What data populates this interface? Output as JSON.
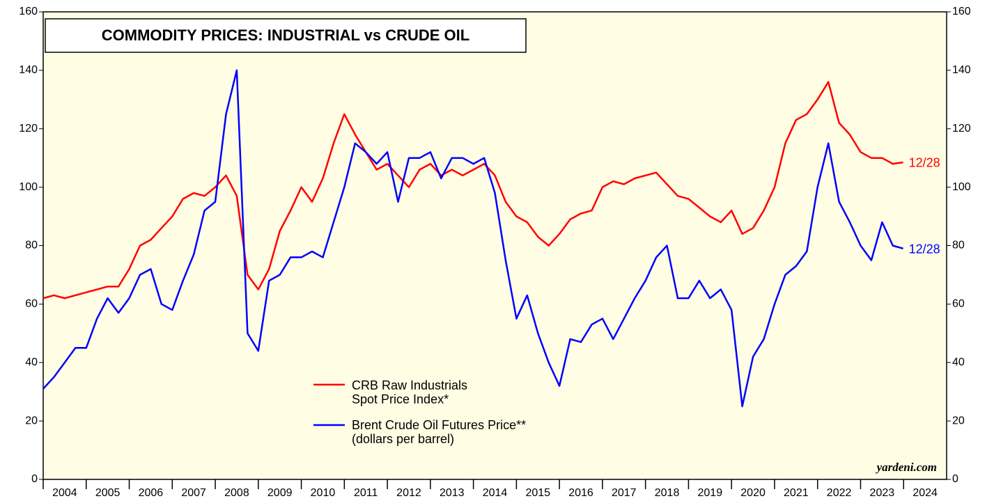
{
  "chart_data": {
    "type": "line",
    "title": "COMMODITY PRICES: INDUSTRIAL vs CRUDE OIL",
    "source": "yardeni.com",
    "x": [
      2004.0,
      2004.25,
      2004.5,
      2004.75,
      2005.0,
      2005.25,
      2005.5,
      2005.75,
      2006.0,
      2006.25,
      2006.5,
      2006.75,
      2007.0,
      2007.25,
      2007.5,
      2007.75,
      2008.0,
      2008.25,
      2008.5,
      2008.75,
      2009.0,
      2009.25,
      2009.5,
      2009.75,
      2010.0,
      2010.25,
      2010.5,
      2010.75,
      2011.0,
      2011.25,
      2011.5,
      2011.75,
      2012.0,
      2012.25,
      2012.5,
      2012.75,
      2013.0,
      2013.25,
      2013.5,
      2013.75,
      2014.0,
      2014.25,
      2014.5,
      2014.75,
      2015.0,
      2015.25,
      2015.5,
      2015.75,
      2016.0,
      2016.25,
      2016.5,
      2016.75,
      2017.0,
      2017.25,
      2017.5,
      2017.75,
      2018.0,
      2018.25,
      2018.5,
      2018.75,
      2019.0,
      2019.25,
      2019.5,
      2019.75,
      2020.0,
      2020.25,
      2020.5,
      2020.75,
      2021.0,
      2021.25,
      2021.5,
      2021.75,
      2022.0,
      2022.25,
      2022.5,
      2022.75,
      2023.0,
      2023.25,
      2023.5,
      2023.75,
      2023.99
    ],
    "series": [
      {
        "name": "CRB Raw Industrials\nSpot Price Index*",
        "color": "#ff0000",
        "values": [
          62,
          63,
          62,
          63,
          64,
          65,
          66,
          66,
          72,
          80,
          82,
          86,
          90,
          96,
          98,
          97,
          100,
          104,
          97,
          70,
          65,
          72,
          85,
          92,
          100,
          95,
          103,
          115,
          125,
          118,
          112,
          106,
          108,
          104,
          100,
          106,
          108,
          104,
          106,
          104,
          106,
          108,
          104,
          95,
          90,
          88,
          83,
          80,
          84,
          89,
          91,
          92,
          100,
          102,
          101,
          103,
          104,
          105,
          101,
          97,
          96,
          93,
          90,
          88,
          92,
          84,
          86,
          92,
          100,
          115,
          123,
          125,
          130,
          136,
          122,
          118,
          112,
          110,
          110,
          108,
          108.5
        ],
        "end_label": "12/28"
      },
      {
        "name": "Brent Crude Oil Futures Price**\n(dollars per barrel)",
        "color": "#0000ff",
        "values": [
          31,
          35,
          40,
          45,
          45,
          55,
          62,
          57,
          62,
          70,
          72,
          60,
          58,
          68,
          77,
          92,
          95,
          125,
          140,
          50,
          44,
          68,
          70,
          76,
          76,
          78,
          76,
          88,
          100,
          115,
          112,
          108,
          112,
          95,
          110,
          110,
          112,
          103,
          110,
          110,
          108,
          110,
          98,
          75,
          55,
          63,
          50,
          40,
          32,
          48,
          47,
          53,
          55,
          48,
          55,
          62,
          68,
          76,
          80,
          62,
          62,
          68,
          62,
          65,
          58,
          25,
          42,
          48,
          60,
          70,
          73,
          78,
          100,
          115,
          95,
          88,
          80,
          75,
          88,
          80,
          79
        ],
        "end_label": "12/28"
      }
    ],
    "xlim": [
      2004,
      2025
    ],
    "xticks": [
      2004,
      2005,
      2006,
      2007,
      2008,
      2009,
      2010,
      2011,
      2012,
      2013,
      2014,
      2015,
      2016,
      2017,
      2018,
      2019,
      2020,
      2021,
      2022,
      2023,
      2024
    ],
    "ylim": [
      0,
      160
    ],
    "yticks": [
      0,
      20,
      40,
      60,
      80,
      100,
      120,
      140,
      160
    ],
    "y2lim": [
      0,
      160
    ],
    "y2ticks": [
      0,
      20,
      40,
      60,
      80,
      100,
      120,
      140,
      160
    ]
  }
}
